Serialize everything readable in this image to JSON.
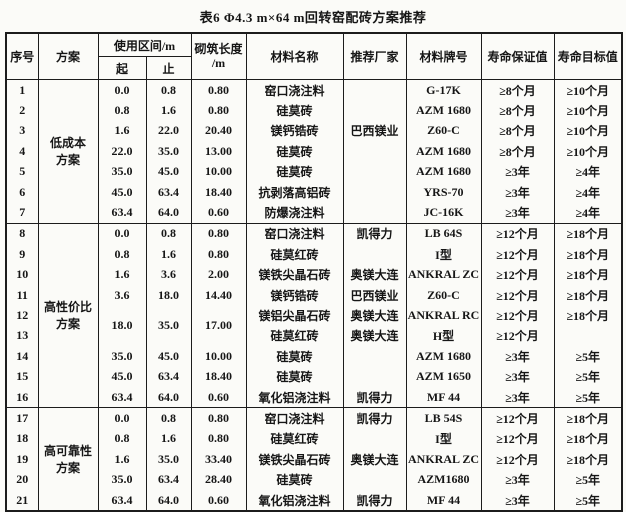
{
  "title": "表6 Φ4.3 m×64 m回转窑配砖方案推荐",
  "table": {
    "headers": {
      "seq": "序号",
      "scheme": "方案",
      "range_group": "使用区间/m",
      "range_start": "起",
      "range_end": "止",
      "length_line1": "砌筑长度",
      "length_line2": "/m",
      "material": "材料名称",
      "manufacturer": "推荐厂家",
      "grade": "材料牌号",
      "life_guarantee": "寿命保证值",
      "life_target": "寿命目标值"
    },
    "sections": [
      {
        "scheme_lines": [
          "低成本",
          "方案"
        ],
        "rows": [
          {
            "seq": "1",
            "start": "0.0",
            "end": "0.8",
            "len": "0.80",
            "material": "窑口浇注料",
            "maker": "",
            "grade": "G-17K",
            "guarantee": "≥8个月",
            "target": "≥10个月"
          },
          {
            "seq": "2",
            "start": "0.8",
            "end": "1.6",
            "len": "0.80",
            "material": "硅莫砖",
            "maker": "",
            "grade": "AZM 1680",
            "guarantee": "≥8个月",
            "target": "≥10个月"
          },
          {
            "seq": "3",
            "start": "1.6",
            "end": "22.0",
            "len": "20.40",
            "material": "镁钙锆砖",
            "maker": "巴西镁业",
            "grade": "Z60-C",
            "guarantee": "≥8个月",
            "target": "≥10个月"
          },
          {
            "seq": "4",
            "start": "22.0",
            "end": "35.0",
            "len": "13.00",
            "material": "硅莫砖",
            "maker": "",
            "grade": "AZM 1680",
            "guarantee": "≥8个月",
            "target": "≥10个月"
          },
          {
            "seq": "5",
            "start": "35.0",
            "end": "45.0",
            "len": "10.00",
            "material": "硅莫砖",
            "maker": "",
            "grade": "AZM 1680",
            "guarantee": "≥3年",
            "target": "≥4年"
          },
          {
            "seq": "6",
            "start": "45.0",
            "end": "63.4",
            "len": "18.40",
            "material": "抗剥落高铝砖",
            "maker": "",
            "grade": "YRS-70",
            "guarantee": "≥3年",
            "target": "≥4年"
          },
          {
            "seq": "7",
            "start": "63.4",
            "end": "64.0",
            "len": "0.60",
            "material": "防爆浇注料",
            "maker": "",
            "grade": "JC-16K",
            "guarantee": "≥3年",
            "target": "≥4年"
          }
        ]
      },
      {
        "scheme_lines": [
          "高性价比",
          "方案"
        ],
        "rows": [
          {
            "seq": "8",
            "start": "0.0",
            "end": "0.8",
            "len": "0.80",
            "material": "窑口浇注料",
            "maker": "凯得力",
            "grade": "LB 64S",
            "guarantee": "≥12个月",
            "target": "≥18个月"
          },
          {
            "seq": "9",
            "start": "0.8",
            "end": "1.6",
            "len": "0.80",
            "material": "硅莫红砖",
            "maker": "",
            "grade": "I型",
            "guarantee": "≥12个月",
            "target": "≥18个月"
          },
          {
            "seq": "10",
            "start": "1.6",
            "end": "3.6",
            "len": "2.00",
            "material": "镁铁尖晶石砖",
            "maker": "奥镁大连",
            "grade": "ANKRAL ZC",
            "guarantee": "≥12个月",
            "target": "≥18个月"
          },
          {
            "seq": "11",
            "start": "3.6",
            "end": "18.0",
            "len": "14.40",
            "material": "镁钙锆砖",
            "maker": "巴西镁业",
            "grade": "Z60-C",
            "guarantee": "≥12个月",
            "target": "≥18个月"
          },
          {
            "seq": "12",
            "start": "18.0",
            "end": "35.0",
            "len": "17.00",
            "merge": 2,
            "material": "镁铝尖晶石砖",
            "maker": "奥镁大连",
            "grade": "ANKRAL RC",
            "guarantee": "≥12个月",
            "target": "≥18个月"
          },
          {
            "seq": "13",
            "start": null,
            "end": null,
            "len": null,
            "material": "硅莫红砖",
            "maker": "奥镁大连",
            "grade": "H型",
            "guarantee": "≥12个月",
            "target": ""
          },
          {
            "seq": "14",
            "start": "35.0",
            "end": "45.0",
            "len": "10.00",
            "material": "硅莫砖",
            "maker": "",
            "grade": "AZM 1680",
            "guarantee": "≥3年",
            "target": "≥5年"
          },
          {
            "seq": "15",
            "start": "45.0",
            "end": "63.4",
            "len": "18.40",
            "material": "硅莫砖",
            "maker": "",
            "grade": "AZM 1650",
            "guarantee": "≥3年",
            "target": "≥5年"
          },
          {
            "seq": "16",
            "start": "63.4",
            "end": "64.0",
            "len": "0.60",
            "material": "氧化铝浇注料",
            "maker": "凯得力",
            "grade": "MF 44",
            "guarantee": "≥3年",
            "target": "≥5年"
          }
        ]
      },
      {
        "scheme_lines": [
          "高可靠性",
          "方案"
        ],
        "rows": [
          {
            "seq": "17",
            "start": "0.0",
            "end": "0.8",
            "len": "0.80",
            "material": "窑口浇注料",
            "maker": "凯得力",
            "grade": "LB 54S",
            "guarantee": "≥12个月",
            "target": "≥18个月"
          },
          {
            "seq": "18",
            "start": "0.8",
            "end": "1.6",
            "len": "0.80",
            "material": "硅莫红砖",
            "maker": "",
            "grade": "I型",
            "guarantee": "≥12个月",
            "target": "≥18个月"
          },
          {
            "seq": "19",
            "start": "1.6",
            "end": "35.0",
            "len": "33.40",
            "material": "镁铁尖晶石砖",
            "maker": "奥镁大连",
            "grade": "ANKRAL ZC",
            "guarantee": "≥12个月",
            "target": "≥18个月"
          },
          {
            "seq": "20",
            "start": "35.0",
            "end": "63.4",
            "len": "28.40",
            "material": "硅莫砖",
            "maker": "",
            "grade": "AZM1680",
            "guarantee": "≥3年",
            "target": "≥5年"
          },
          {
            "seq": "21",
            "start": "63.4",
            "end": "64.0",
            "len": "0.60",
            "material": "氧化铝浇注料",
            "maker": "凯得力",
            "grade": "MF 44",
            "guarantee": "≥3年",
            "target": "≥5年"
          }
        ]
      }
    ]
  }
}
